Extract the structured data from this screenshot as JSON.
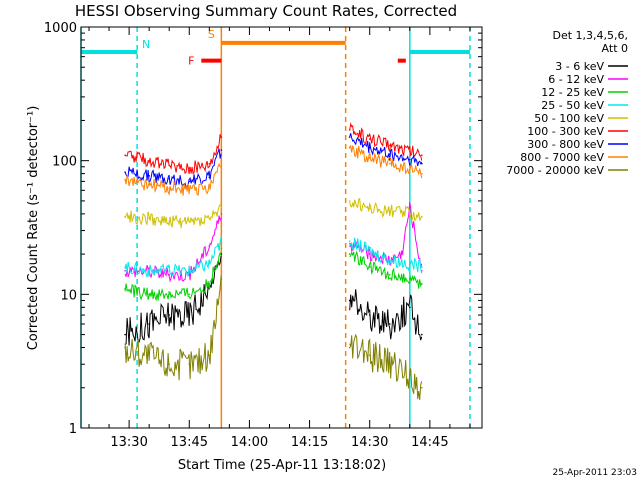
{
  "chart_data": {
    "type": "line",
    "title": "HESSI Observing Summary Count Rates, Corrected",
    "xlabel": "Start Time (25-Apr-11 13:18:02)",
    "ylabel": "Corrected Count Rate (s⁻¹ detector⁻¹)",
    "yscale": "log",
    "ylim": [
      1,
      1000
    ],
    "xlim": [
      "13:18",
      "14:58"
    ],
    "x_ticks": [
      "13:30",
      "13:45",
      "14:00",
      "14:15",
      "14:30",
      "14:45"
    ],
    "y_ticks": [
      "1",
      "10",
      "100",
      "1000"
    ],
    "date_stamp": "25-Apr-2011 23:03",
    "legend": {
      "placement": "right",
      "header_lines": [
        "Det 1,3,4,5,6,",
        "Att 0"
      ]
    },
    "flags": [
      {
        "label": "N",
        "color": "#00e0e0",
        "intervals": [
          [
            "13:18",
            "13:32"
          ],
          [
            "14:40",
            "14:55"
          ]
        ],
        "level": 650
      },
      {
        "label": "S",
        "color": "#ff8000",
        "intervals": [
          [
            "13:53",
            "14:24"
          ]
        ],
        "level": 760
      },
      {
        "label": "F",
        "color": "#ff0000",
        "intervals": [
          [
            "13:48",
            "13:53"
          ],
          [
            "14:37",
            "14:39"
          ]
        ],
        "level": 560
      }
    ],
    "vlines": [
      {
        "t": "13:18",
        "color": "#00e0e0",
        "style": "solid"
      },
      {
        "t": "13:32",
        "color": "#00e0e0",
        "style": "dashed"
      },
      {
        "t": "13:53",
        "color": "#ff8000",
        "style": "solid"
      },
      {
        "t": "14:24",
        "color": "#ff8000",
        "style": "dashed"
      },
      {
        "t": "14:40",
        "color": "#00e0e0",
        "style": "solid"
      },
      {
        "t": "14:55",
        "color": "#00e0e0",
        "style": "dashed"
      }
    ],
    "series": [
      {
        "name": "3 - 6 keV",
        "color": "#000000",
        "seg1": {
          "x": [
            "13:29",
            "13:35",
            "13:40",
            "13:45",
            "13:50",
            "13:53"
          ],
          "y": [
            5,
            6,
            7,
            7,
            11,
            20
          ]
        },
        "seg2": {
          "x": [
            "14:25",
            "14:30",
            "14:35",
            "14:40",
            "14:43"
          ],
          "y": [
            9,
            7,
            6,
            8,
            5
          ]
        }
      },
      {
        "name": "6 - 12 keV",
        "color": "#ff00ff",
        "seg1": {
          "x": [
            "13:29",
            "13:35",
            "13:40",
            "13:45",
            "13:50",
            "13:53"
          ],
          "y": [
            15,
            15,
            14,
            14,
            23,
            40
          ]
        },
        "seg2": {
          "x": [
            "14:25",
            "14:30",
            "14:35",
            "14:38",
            "14:40",
            "14:43"
          ],
          "y": [
            24,
            20,
            18,
            20,
            45,
            15
          ]
        }
      },
      {
        "name": "12 - 25 keV",
        "color": "#00d000",
        "seg1": {
          "x": [
            "13:29",
            "13:35",
            "13:40",
            "13:45",
            "13:50",
            "13:53"
          ],
          "y": [
            11,
            10,
            10,
            10,
            12,
            22
          ]
        },
        "seg2": {
          "x": [
            "14:25",
            "14:30",
            "14:35",
            "14:40",
            "14:43"
          ],
          "y": [
            20,
            16,
            14,
            13,
            12
          ]
        }
      },
      {
        "name": "25 - 50 keV",
        "color": "#00e8e8",
        "seg1": {
          "x": [
            "13:29",
            "13:35",
            "13:40",
            "13:45",
            "13:50",
            "13:53"
          ],
          "y": [
            16,
            15,
            15,
            15,
            17,
            25
          ]
        },
        "seg2": {
          "x": [
            "14:25",
            "14:30",
            "14:35",
            "14:40",
            "14:43"
          ],
          "y": [
            25,
            21,
            18,
            17,
            16
          ]
        }
      },
      {
        "name": "50 - 100 keV",
        "color": "#d0c000",
        "seg1": {
          "x": [
            "13:29",
            "13:35",
            "13:40",
            "13:45",
            "13:50",
            "13:53"
          ],
          "y": [
            38,
            37,
            35,
            35,
            37,
            45
          ]
        },
        "seg2": {
          "x": [
            "14:25",
            "14:30",
            "14:35",
            "14:40",
            "14:43"
          ],
          "y": [
            50,
            44,
            42,
            40,
            38
          ]
        }
      },
      {
        "name": "100 - 300 keV",
        "color": "#ff0000",
        "seg1": {
          "x": [
            "13:29",
            "13:35",
            "13:40",
            "13:45",
            "13:50",
            "13:53"
          ],
          "y": [
            110,
            100,
            92,
            88,
            95,
            150
          ]
        },
        "seg2": {
          "x": [
            "14:25",
            "14:30",
            "14:35",
            "14:40",
            "14:43"
          ],
          "y": [
            170,
            145,
            130,
            118,
            110
          ]
        }
      },
      {
        "name": "300 - 800 keV",
        "color": "#0000ff",
        "seg1": {
          "x": [
            "13:29",
            "13:35",
            "13:40",
            "13:45",
            "13:50",
            "13:53"
          ],
          "y": [
            82,
            77,
            73,
            70,
            75,
            120
          ]
        },
        "seg2": {
          "x": [
            "14:25",
            "14:30",
            "14:35",
            "14:40",
            "14:43"
          ],
          "y": [
            150,
            125,
            112,
            102,
            95
          ]
        }
      },
      {
        "name": "800 - 7000 keV",
        "color": "#ff8000",
        "seg1": {
          "x": [
            "13:29",
            "13:35",
            "13:40",
            "13:45",
            "13:50",
            "13:53"
          ],
          "y": [
            72,
            66,
            62,
            60,
            64,
            100
          ]
        },
        "seg2": {
          "x": [
            "14:25",
            "14:30",
            "14:35",
            "14:40",
            "14:43"
          ],
          "y": [
            125,
            105,
            95,
            85,
            80
          ]
        }
      },
      {
        "name": "7000 - 20000 keV",
        "color": "#808000",
        "seg1": {
          "x": [
            "13:29",
            "13:35",
            "13:40",
            "13:45",
            "13:50",
            "13:53"
          ],
          "y": [
            4,
            3.5,
            3,
            3,
            3.5,
            13
          ]
        },
        "seg2": {
          "x": [
            "14:25",
            "14:30",
            "14:35",
            "14:40",
            "14:43"
          ],
          "y": [
            4,
            3.5,
            3,
            2.5,
            2
          ]
        }
      }
    ]
  }
}
